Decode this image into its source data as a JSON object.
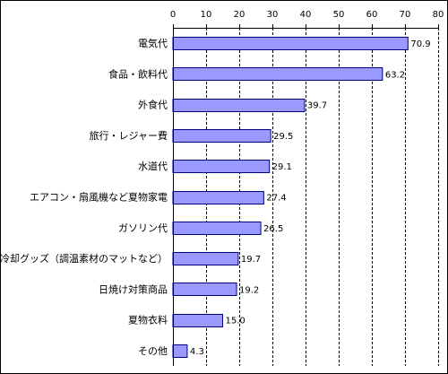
{
  "chart_data": {
    "type": "bar",
    "orientation": "horizontal",
    "xlim": [
      0,
      80
    ],
    "xticks": [
      0,
      10,
      20,
      30,
      40,
      50,
      60,
      70,
      80
    ],
    "xtick_labels": [
      "0",
      "10",
      "20",
      "30",
      "40",
      "50",
      "60",
      "70",
      "80"
    ],
    "axis_position": "top",
    "grid": "vertical-dashed",
    "bar_color": "#9999ff",
    "bar_edge_color": "#000080",
    "categories": [
      "電気代",
      "食品・飲料代",
      "外食代",
      "旅行・レジャー費",
      "水道代",
      "エアコン・扇風機など夏物家電",
      "ガソリン代",
      "冷却グッズ（調温素材のマットなど）",
      "日焼け対策商品",
      "夏物衣料",
      "その他"
    ],
    "values": [
      70.9,
      63.2,
      39.7,
      29.5,
      29.1,
      27.4,
      26.5,
      19.7,
      19.2,
      15.0,
      4.3
    ],
    "value_labels": [
      "70.9",
      "63.2",
      "39.7",
      "29.5",
      "29.1",
      "27.4",
      "26.5",
      "19.7",
      "19.2",
      "15.0",
      "4.3"
    ]
  }
}
